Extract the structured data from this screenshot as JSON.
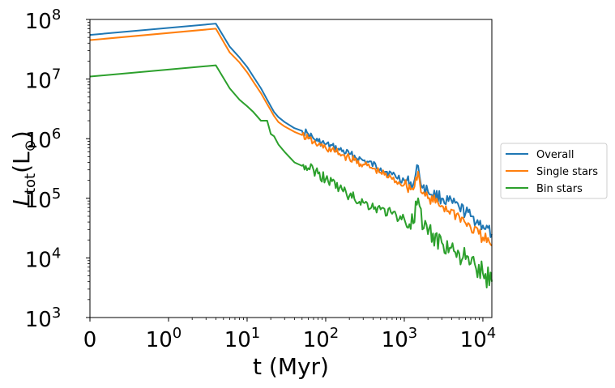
{
  "chart_data": {
    "type": "line",
    "title": "",
    "xlabel": "t (Myr)",
    "ylabel_main": "L",
    "ylabel_sub": "tot",
    "ylabel_unit": "(L",
    "ylabel_unit_sub": "⊙",
    "ylabel_close": ")",
    "xscale": "symlog",
    "yscale": "log",
    "xlim": [
      0,
      13000
    ],
    "ylim": [
      1000,
      100000000
    ],
    "x_ticks": [
      {
        "value": 0,
        "label": "0",
        "exp": ""
      },
      {
        "value": 1,
        "label": "10",
        "exp": "0"
      },
      {
        "value": 10,
        "label": "10",
        "exp": "1"
      },
      {
        "value": 100,
        "label": "10",
        "exp": "2"
      },
      {
        "value": 1000,
        "label": "10",
        "exp": "3"
      },
      {
        "value": 10000,
        "label": "10",
        "exp": "4"
      }
    ],
    "y_ticks": [
      {
        "value": 1000,
        "label": "10",
        "exp": "3"
      },
      {
        "value": 10000,
        "label": "10",
        "exp": "4"
      },
      {
        "value": 100000,
        "label": "10",
        "exp": "5"
      },
      {
        "value": 1000000,
        "label": "10",
        "exp": "6"
      },
      {
        "value": 10000000,
        "label": "10",
        "exp": "7"
      },
      {
        "value": 100000000,
        "label": "10",
        "exp": "8"
      }
    ],
    "legend_position": "right-outside",
    "series": [
      {
        "name": "Overall",
        "color": "#1f77b4",
        "x": [
          0,
          4,
          6,
          8,
          10,
          12,
          15,
          18,
          20,
          22,
          25,
          30,
          40,
          50,
          60,
          70,
          80,
          100,
          150,
          200,
          300,
          500,
          700,
          1000,
          1300,
          1500,
          1700,
          2000,
          3000,
          5000,
          7000,
          10000,
          13000
        ],
        "y": [
          55000000,
          85000000,
          35000000,
          23000000,
          16000000,
          11000000,
          7000000,
          4500000,
          3500000,
          2800000,
          2300000,
          1900000,
          1500000,
          1350000,
          1200000,
          1000000,
          900000,
          800000,
          650000,
          550000,
          430000,
          320000,
          250000,
          200000,
          170000,
          350000,
          150000,
          130000,
          100000,
          70000,
          50000,
          35000,
          25000
        ]
      },
      {
        "name": "Single stars",
        "color": "#ff7f0e",
        "x": [
          0,
          4,
          6,
          8,
          10,
          12,
          15,
          18,
          20,
          22,
          25,
          30,
          40,
          50,
          60,
          70,
          80,
          100,
          150,
          200,
          300,
          500,
          700,
          1000,
          1300,
          1500,
          1700,
          2000,
          3000,
          5000,
          7000,
          10000,
          13000
        ],
        "y": [
          45000000,
          70000000,
          28000000,
          19000000,
          13000000,
          9000000,
          5800000,
          3800000,
          3000000,
          2400000,
          1900000,
          1600000,
          1300000,
          1150000,
          1000000,
          870000,
          780000,
          700000,
          560000,
          470000,
          370000,
          270000,
          210000,
          170000,
          140000,
          280000,
          120000,
          100000,
          75000,
          50000,
          32000,
          22000,
          16000
        ]
      },
      {
        "name": "Bin stars",
        "color": "#2ca02c",
        "x": [
          0,
          4,
          6,
          8,
          10,
          12,
          15,
          18,
          20,
          22,
          25,
          30,
          40,
          50,
          60,
          70,
          80,
          100,
          150,
          200,
          300,
          500,
          700,
          1000,
          1300,
          1500,
          1700,
          2000,
          3000,
          5000,
          7000,
          10000,
          13000
        ],
        "y": [
          11000000,
          17000000,
          7000000,
          4500000,
          3500000,
          2800000,
          2000000,
          2000000,
          1200000,
          1100000,
          800000,
          600000,
          400000,
          350000,
          320000,
          300000,
          260000,
          210000,
          150000,
          110000,
          85000,
          65000,
          55000,
          45000,
          38000,
          100000,
          30000,
          25000,
          18000,
          12000,
          8000,
          5500,
          4000
        ]
      }
    ]
  }
}
